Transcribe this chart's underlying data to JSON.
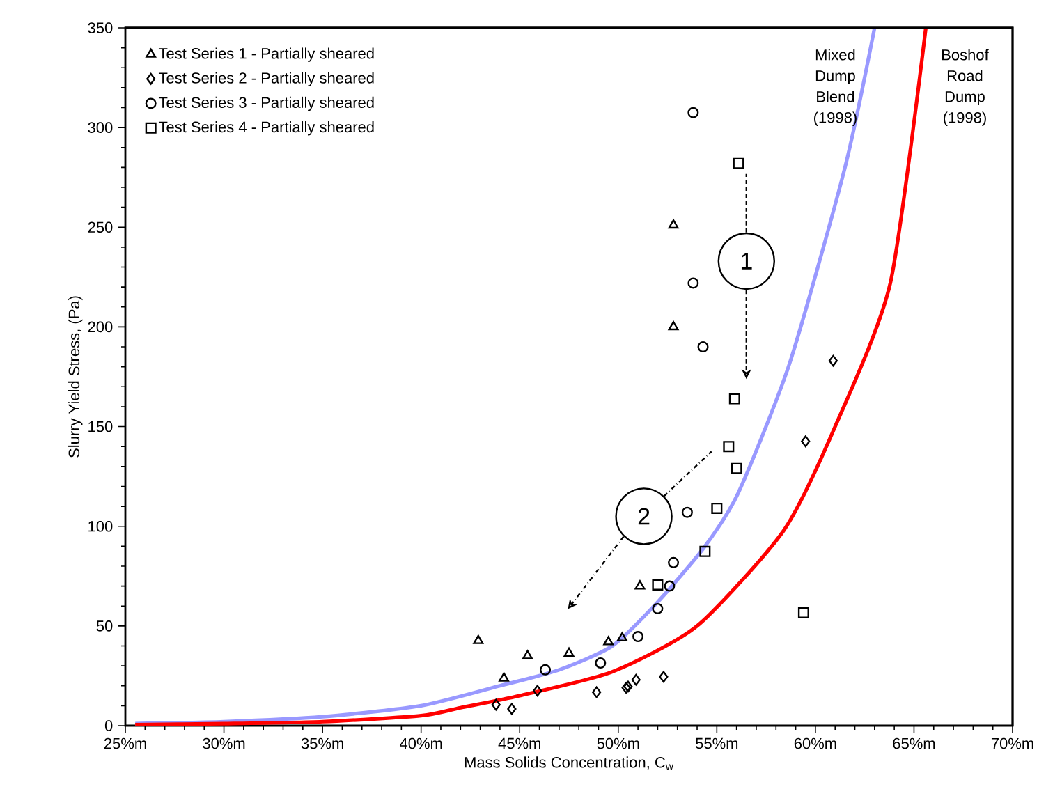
{
  "chart_data": {
    "type": "scatter",
    "xlabel": "Mass Solids Concentration, C$_{w}$",
    "ylabel": "Slurry Yield Stress, (Pa)",
    "xlim": [
      25,
      70
    ],
    "ylim": [
      0,
      350
    ],
    "xticks": [
      {
        "value": 25,
        "label": "25%m"
      },
      {
        "value": 30,
        "label": "30%m"
      },
      {
        "value": 35,
        "label": "35%m"
      },
      {
        "value": 40,
        "label": "40%m"
      },
      {
        "value": 45,
        "label": "45%m"
      },
      {
        "value": 50,
        "label": "50%m"
      },
      {
        "value": 55,
        "label": "55%m"
      },
      {
        "value": 60,
        "label": "60%m"
      },
      {
        "value": 65,
        "label": "65%m"
      },
      {
        "value": 70,
        "label": "70%m"
      }
    ],
    "yticks": [
      0,
      50,
      100,
      150,
      200,
      250,
      300,
      350
    ],
    "grid": false,
    "legend": "top left",
    "annotations": [
      {
        "text": "1",
        "x": 56.5,
        "y": 233
      },
      {
        "text": "2",
        "x": 51.3,
        "y": 105
      }
    ],
    "series": [
      {
        "name": "Test Series 1 - Partially sheared",
        "color": "#000000",
        "marker": "triangle",
        "x": [
          42.9,
          44.2,
          45.4,
          47.5,
          49.5,
          50.2,
          51.1,
          52.8,
          52.8
        ],
        "values": [
          42.6,
          23.8,
          35,
          36.3,
          42,
          44,
          70,
          251,
          200
        ]
      },
      {
        "name": "Test Series 2 - Partially sheared",
        "color": "#000000",
        "marker": "diamond",
        "x": [
          43.8,
          44.6,
          45.9,
          48.9,
          50.4,
          50.5,
          50.9,
          52.3,
          60.9,
          59.5
        ],
        "values": [
          10.5,
          8.4,
          17.5,
          16.8,
          19,
          19.6,
          23,
          24.5,
          183,
          142.6
        ]
      },
      {
        "name": "Test Series 3 - Partially sheared",
        "color": "#000000",
        "marker": "circle",
        "x": [
          46.3,
          49.1,
          51.0,
          52.0,
          52.6,
          52.8,
          53.8,
          53.8,
          54.3,
          53.5
        ],
        "values": [
          28,
          31.4,
          44.7,
          58.7,
          70,
          81.8,
          307.5,
          222,
          190,
          107
        ]
      },
      {
        "name": "Test Series 4 - Partially sheared",
        "color": "#000000",
        "marker": "square",
        "x": [
          56.1,
          55.9,
          55.6,
          56.0,
          55.0,
          54.4,
          52.0,
          59.4
        ],
        "values": [
          282,
          164,
          140,
          129,
          109,
          87.4,
          70.6,
          56.6
        ]
      },
      {
        "name": "Mixed Dump Blend (1998)",
        "type": "line",
        "color": "#9999ff",
        "x": [
          25.5,
          30,
          35,
          40,
          44,
          47,
          49.7,
          52,
          54.4,
          56.1,
          58.7,
          61.5,
          63
        ],
        "values": [
          1,
          2,
          4.5,
          10,
          20,
          28,
          40,
          62,
          90,
          117,
          182,
          280,
          350
        ]
      },
      {
        "name": "Boshof Road Dump (1998)",
        "type": "line",
        "color": "#ff0000",
        "x": [
          25.5,
          30,
          35,
          40,
          42,
          45,
          49.7,
          54,
          58.4,
          61,
          63.8,
          65.6
        ],
        "values": [
          0.5,
          1,
          2,
          5,
          9,
          15,
          27,
          50,
          98,
          150,
          222,
          350
        ]
      }
    ]
  }
}
